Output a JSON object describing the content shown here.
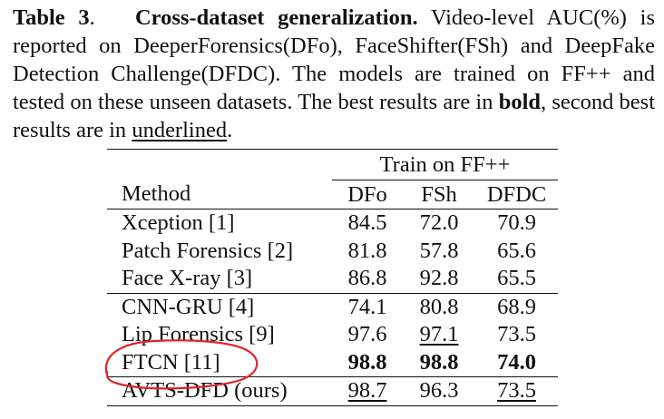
{
  "caption": {
    "label": "Table 3",
    "title": "Cross-dataset generalization.",
    "text_1": "Video-level AUC(%) is reported on DeeperForensics(DFo), FaceShifter(FSh) and DeepFake Detection Challenge(DFDC). The models are trained on FF++ and tested on these unseen datasets. The best results are in",
    "bold_word": "bold",
    "text_2": ", second best results are in",
    "underlined_word": "underlined",
    "text_3": "."
  },
  "table": {
    "group_header": "Train on FF++",
    "columns": [
      "Method",
      "DFo",
      "FSh",
      "DFDC"
    ],
    "rows": [
      [
        "Xception [1]",
        "84.5",
        "72.0",
        "70.9"
      ],
      [
        "Patch Forensics [2]",
        "81.8",
        "57.8",
        "65.6"
      ],
      [
        "Face X-ray [3]",
        "86.8",
        "92.8",
        "65.5"
      ],
      [
        "CNN-GRU [4]",
        "74.1",
        "80.8",
        "68.9"
      ],
      [
        "Lip Forensics [9]",
        "97.6",
        "97.1",
        "73.5"
      ],
      [
        "FTCN [11]",
        "98.8",
        "98.8",
        "74.0"
      ],
      [
        "AVTS-DFD (ours)",
        "98.7",
        "96.3",
        "73.5"
      ]
    ]
  },
  "annotation": {
    "color": "#e0232a",
    "shape": "hand-drawn ellipse around FTCN row label"
  }
}
